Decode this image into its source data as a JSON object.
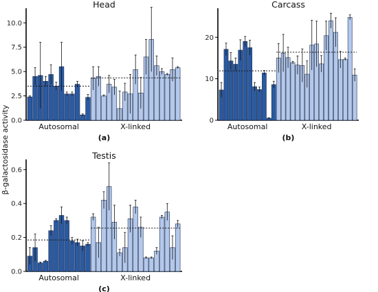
{
  "figure": {
    "ylabel": "β-galactosidase activity",
    "colors": {
      "autosomal": "#2a5aa2",
      "xlinked": "#b3c8ea"
    }
  },
  "chart_data": [
    {
      "type": "bar",
      "id": "head",
      "title": "Head",
      "panel_label": "(a)",
      "group_labels": [
        "Autosomal",
        "X-linked"
      ],
      "ylim": [
        0,
        11.5
      ],
      "yticks": [
        "0.0",
        "2.5",
        "5.0",
        "7.5",
        "10.0"
      ],
      "ytick_values": [
        0,
        2.5,
        5,
        7.5,
        10
      ],
      "autosomal": {
        "values": [
          2.4,
          4.5,
          4.6,
          4.0,
          4.7,
          3.5,
          5.5,
          2.7,
          2.7,
          3.7,
          0.55,
          2.35
        ],
        "errors": [
          0.1,
          0.9,
          3.4,
          0.5,
          1.0,
          0.4,
          2.5,
          0.2,
          0.2,
          0.3,
          0.1,
          0.3
        ]
      },
      "xlinked": {
        "values": [
          4.3,
          4.5,
          2.5,
          3.7,
          3.4,
          1.2,
          2.9,
          2.7,
          5.2,
          2.8,
          6.5,
          8.3,
          5.6,
          5.0,
          4.7,
          5.2,
          5.4
        ],
        "errors": [
          1.2,
          1.0,
          0.1,
          0.9,
          0.8,
          1.8,
          0.9,
          2.0,
          1.5,
          1.6,
          1.8,
          3.3,
          1.0,
          0.3,
          0.1,
          1.2,
          0.1
        ]
      },
      "means": {
        "autosomal": 3.5,
        "xlinked": 4.35
      }
    },
    {
      "type": "bar",
      "id": "carcass",
      "title": "Carcass",
      "panel_label": "(b)",
      "group_labels": [
        "Autosomal",
        "X-linked"
      ],
      "ylim": [
        0,
        27
      ],
      "yticks": [
        "0",
        "10",
        "20"
      ],
      "ytick_values": [
        0,
        10,
        20
      ],
      "autosomal": {
        "values": [
          7.3,
          17.1,
          14.3,
          13.5,
          16.9,
          19.0,
          17.5,
          8.1,
          7.4,
          11.4,
          0.5,
          8.6
        ],
        "errors": [
          1.8,
          1.5,
          2.0,
          1.5,
          2.5,
          1.2,
          1.8,
          1.0,
          0.6,
          0.6,
          0.1,
          0.8
        ]
      },
      "xlinked": {
        "values": [
          15.0,
          16.2,
          15.1,
          13.9,
          13.3,
          13.2,
          11.1,
          18.1,
          18.4,
          13.6,
          20.4,
          24.0,
          21.2,
          14.6,
          14.7,
          24.8,
          10.9
        ],
        "errors": [
          3.5,
          4.5,
          2.5,
          0.3,
          2.2,
          4.0,
          3.2,
          6.0,
          5.5,
          2.0,
          3.5,
          1.8,
          3.5,
          2.0,
          0.3,
          0.6,
          1.5
        ]
      },
      "means": {
        "autosomal": 11.9,
        "xlinked": 16.4
      }
    },
    {
      "type": "bar",
      "id": "testis",
      "title": "Testis",
      "panel_label": "(c)",
      "group_labels": [
        "Autosomal",
        "X-linked"
      ],
      "ylim": [
        0,
        0.66
      ],
      "yticks": [
        "0.0",
        "0.2",
        "0.4",
        "0.6"
      ],
      "ytick_values": [
        0,
        0.2,
        0.4,
        0.6
      ],
      "autosomal": {
        "values": [
          0.09,
          0.14,
          0.05,
          0.06,
          0.24,
          0.3,
          0.33,
          0.3,
          0.18,
          0.17,
          0.15,
          0.16
        ],
        "errors": [
          0.05,
          0.08,
          0.005,
          0.005,
          0.03,
          0.01,
          0.05,
          0.02,
          0.02,
          0.02,
          0.03,
          0.01
        ]
      },
      "xlinked": {
        "values": [
          0.32,
          0.17,
          0.42,
          0.5,
          0.29,
          0.11,
          0.14,
          0.31,
          0.38,
          0.26,
          0.08,
          0.08,
          0.12,
          0.32,
          0.35,
          0.14,
          0.28
        ],
        "errors": [
          0.02,
          0.09,
          0.05,
          0.14,
          0.1,
          0.02,
          0.09,
          0.08,
          0.04,
          0.06,
          0.005,
          0.005,
          0.02,
          0.01,
          0.05,
          0.07,
          0.02
        ]
      },
      "means": {
        "autosomal": 0.185,
        "xlinked": 0.255
      }
    }
  ]
}
